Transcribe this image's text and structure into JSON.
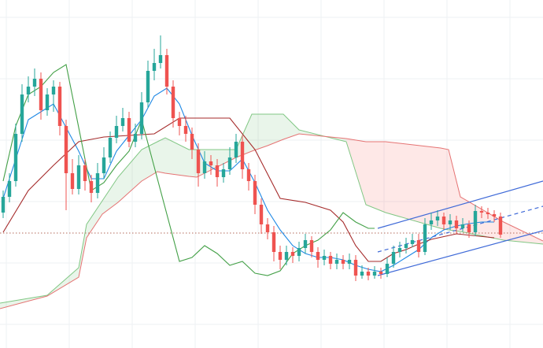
{
  "chart_data": {
    "type": "candlestick",
    "xlim": [
      -0.5,
      85.75
    ],
    "ylim": [
      0,
      442
    ],
    "grid_x": [
      0.5,
      10.5,
      20.5,
      30.5,
      40.5,
      50.5,
      60.5,
      70.5,
      80.5
    ],
    "grid_y": [
      30,
      108,
      186,
      264,
      342,
      420
    ],
    "grid_color": "#eef0f3",
    "up_color": "#26a69a",
    "down_color": "#ef5350",
    "open": [
      172,
      192,
      212,
      272,
      322,
      332,
      342,
      302,
      322,
      332,
      282,
      222,
      202,
      232,
      212,
      197,
      222,
      242,
      267,
      282,
      292,
      262,
      272,
      312,
      352,
      362,
      372,
      332,
      292,
      282,
      272,
      252,
      222,
      237,
      232,
      217,
      227,
      242,
      262,
      227,
      212,
      182,
      157,
      147,
      122,
      112,
      122,
      117,
      127,
      137,
      122,
      112,
      117,
      107,
      112,
      107,
      112,
      92,
      97,
      92,
      97,
      94,
      107,
      122,
      127,
      132,
      137,
      122,
      157,
      162,
      167,
      157,
      162,
      152,
      157,
      147,
      174,
      172,
      170,
      167
    ],
    "high": [
      200,
      222,
      285,
      335,
      345,
      355,
      350,
      330,
      340,
      338,
      290,
      240,
      245,
      240,
      220,
      235,
      255,
      275,
      295,
      305,
      300,
      285,
      325,
      365,
      380,
      397,
      380,
      340,
      300,
      295,
      280,
      260,
      250,
      245,
      240,
      235,
      255,
      272,
      270,
      235,
      220,
      190,
      165,
      155,
      130,
      130,
      128,
      135,
      145,
      142,
      128,
      125,
      122,
      120,
      118,
      120,
      118,
      105,
      102,
      104,
      102,
      115,
      130,
      135,
      140,
      145,
      145,
      165,
      172,
      175,
      172,
      170,
      168,
      165,
      162,
      182,
      180,
      178,
      175,
      172
    ],
    "low": [
      165,
      185,
      205,
      262,
      312,
      320,
      290,
      295,
      300,
      270,
      175,
      195,
      195,
      200,
      185,
      190,
      215,
      235,
      260,
      275,
      255,
      255,
      265,
      305,
      340,
      355,
      322,
      280,
      270,
      262,
      240,
      205,
      215,
      220,
      205,
      210,
      220,
      235,
      215,
      200,
      170,
      145,
      138,
      110,
      100,
      105,
      108,
      110,
      120,
      115,
      102,
      105,
      100,
      100,
      100,
      100,
      85,
      88,
      86,
      88,
      88,
      90,
      102,
      115,
      120,
      128,
      115,
      118,
      150,
      155,
      150,
      150,
      145,
      148,
      140,
      142,
      165,
      164,
      160,
      140
    ],
    "close": [
      192,
      212,
      272,
      322,
      332,
      342,
      302,
      322,
      332,
      282,
      222,
      202,
      232,
      212,
      197,
      222,
      242,
      267,
      282,
      292,
      262,
      272,
      312,
      352,
      362,
      372,
      332,
      292,
      282,
      272,
      252,
      222,
      237,
      232,
      217,
      227,
      242,
      262,
      227,
      212,
      182,
      157,
      147,
      122,
      112,
      122,
      117,
      127,
      137,
      122,
      112,
      117,
      107,
      112,
      107,
      112,
      92,
      97,
      92,
      97,
      94,
      107,
      122,
      127,
      132,
      137,
      122,
      157,
      162,
      167,
      157,
      162,
      152,
      157,
      147,
      174,
      172,
      170,
      167,
      144
    ],
    "cloud": {
      "x": [
        -0.5,
        7,
        12,
        13.25,
        15.75,
        18.25,
        22,
        24.5,
        25.75,
        29.5,
        30.75,
        37,
        39.5,
        42,
        44.5,
        47,
        54.5,
        57.625,
        60.75,
        69.5,
        70.75,
        72.625,
        79.5,
        85.75
      ],
      "span_a": [
        57,
        67,
        102,
        157,
        187,
        217,
        252,
        262,
        267,
        252,
        252,
        252,
        297,
        297,
        297,
        277,
        262,
        182,
        172,
        152,
        150,
        148,
        137,
        132
      ],
      "span_b": [
        50,
        66,
        90,
        140,
        170,
        185,
        212,
        224,
        222,
        218,
        217,
        242,
        250,
        257,
        265,
        272,
        266,
        262,
        262,
        254,
        252,
        192,
        160,
        136
      ],
      "up_fill": "rgba(76,175,80,0.12)",
      "down_fill": "rgba(244,67,54,0.12)",
      "a_color": "#81c784",
      "b_color": "#e57373"
    },
    "lines": [
      {
        "color": "#1e88e5",
        "x": [
          0,
          2,
          4,
          6,
          8,
          10,
          12,
          14,
          16,
          18,
          20,
          22,
          24,
          26,
          28,
          30,
          32,
          34,
          36,
          38,
          40,
          42,
          44,
          46,
          48,
          50,
          52,
          54,
          56,
          58,
          60,
          62,
          64,
          66,
          68,
          70,
          72,
          74,
          76,
          78
        ],
        "values": [
          190,
          240,
          290,
          300,
          310,
          280,
          250,
          215,
          215,
          250,
          270,
          290,
          320,
          330,
          310,
          270,
          235,
          225,
          225,
          240,
          210,
          175,
          150,
          130,
          120,
          115,
          115,
          112,
          105,
          100,
          97,
          105,
          115,
          125,
          140,
          150,
          155,
          158,
          160,
          160
        ]
      },
      {
        "color": "#a52a2a",
        "x": [
          0,
          4,
          8,
          12,
          16,
          20,
          24,
          28,
          32,
          36,
          40,
          44,
          48,
          52,
          54,
          56,
          58,
          60,
          62,
          64,
          66,
          68,
          72,
          78
        ],
        "values": [
          147,
          200,
          232,
          262,
          268,
          270,
          272,
          292,
          292,
          292,
          252,
          190,
          185,
          175,
          160,
          130,
          110,
          110,
          120,
          125,
          132,
          138,
          145,
          140
        ]
      },
      {
        "color": "#43a047",
        "x": [
          0,
          2,
          4,
          6,
          8,
          10,
          12,
          14,
          16,
          18,
          20,
          22,
          24,
          26,
          28,
          30,
          32,
          34,
          36,
          38,
          40,
          42,
          44,
          46,
          48,
          50,
          52,
          54,
          56,
          58,
          59
        ],
        "values": [
          212,
          282,
          322,
          332,
          350,
          360,
          280,
          200,
          210,
          232,
          250,
          290,
          230,
          170,
          110,
          115,
          130,
          120,
          105,
          110,
          95,
          92,
          98,
          120,
          130,
          137,
          150,
          172,
          160,
          152,
          152
        ]
      }
    ],
    "channel": {
      "x": [
        59.5,
        85.75
      ],
      "lower": [
        92,
        149
      ],
      "middle": [
        122,
        180
      ],
      "upper": [
        152,
        212
      ],
      "color": "#3f6ad8"
    },
    "price_line": {
      "value": 146,
      "color": "#b56a5a"
    }
  }
}
